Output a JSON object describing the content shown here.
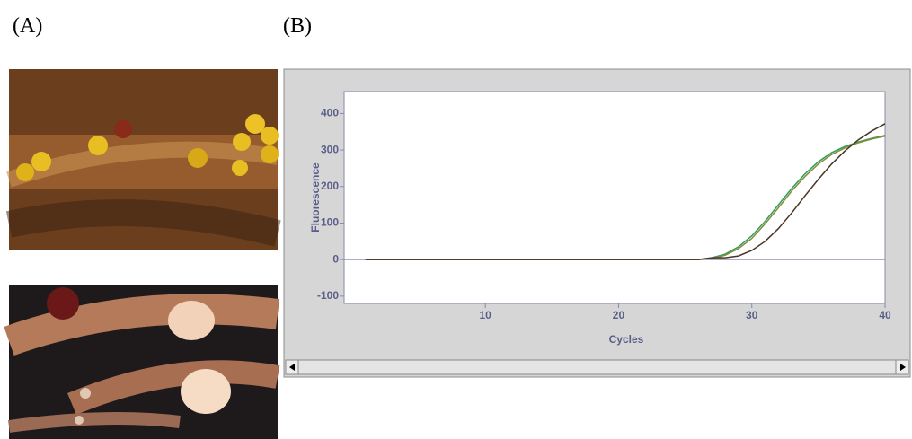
{
  "panels": {
    "a": "(A)",
    "b": "(B)"
  },
  "chart_data": {
    "type": "line",
    "x_label": "Cycles",
    "y_label": "Fluorescence",
    "x": [
      1,
      10,
      20,
      25,
      26,
      27,
      28,
      29,
      30,
      31,
      32,
      33,
      34,
      35,
      36,
      37,
      38,
      39,
      40
    ],
    "series": [
      {
        "color": "#2e9e5b",
        "values": [
          0,
          0,
          0,
          0,
          0,
          5,
          15,
          35,
          65,
          105,
          150,
          195,
          235,
          268,
          293,
          310,
          322,
          332,
          340
        ]
      },
      {
        "color": "#8a8a3a",
        "values": [
          0,
          0,
          0,
          0,
          0,
          3,
          12,
          30,
          58,
          98,
          142,
          188,
          228,
          262,
          288,
          306,
          320,
          330,
          338
        ]
      },
      {
        "color": "#4a3526",
        "values": [
          0,
          0,
          0,
          0,
          0,
          5,
          5,
          10,
          25,
          50,
          85,
          128,
          175,
          220,
          262,
          298,
          328,
          352,
          372
        ]
      }
    ],
    "xlim": [
      -0.6,
      40
    ],
    "ylim": [
      -120,
      460
    ],
    "xticks": [
      10,
      20,
      30,
      40
    ],
    "yticks": [
      -100,
      0,
      100,
      200,
      300,
      400
    ]
  }
}
